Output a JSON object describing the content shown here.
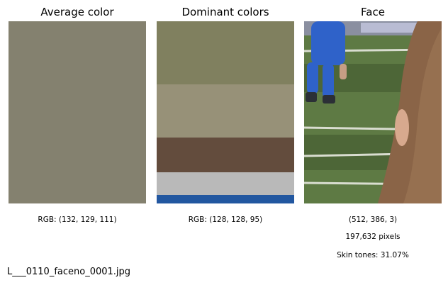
{
  "panels": {
    "average": {
      "title": "Average color",
      "swatch_color": "#84816F",
      "caption": "RGB: (132, 129, 111)"
    },
    "dominant": {
      "title": "Dominant colors",
      "stripes": [
        {
          "color": "#80805F",
          "share": 0.345
        },
        {
          "color": "#979178",
          "share": 0.29
        },
        {
          "color": "#634C3D",
          "share": 0.19
        },
        {
          "color": "#B9B9B9",
          "share": 0.125
        },
        {
          "color": "#2257A0",
          "share": 0.05
        }
      ],
      "caption": "RGB: (128, 128, 95)"
    },
    "face": {
      "title": "Face",
      "shape_text": "(512, 386, 3)",
      "pixel_count": "197,632 pixels",
      "skin_tones": "Skin tones: 31.07%",
      "colors": {
        "grass": "#5E7A44",
        "grass_dark": "#4D6637",
        "jersey": "#2F62C9",
        "hair": "#8A6447",
        "hair_light": "#A07A58",
        "skin": "#D7A98E",
        "field_line": "#D9DDD0"
      }
    }
  },
  "filename": "L___0110_faceno_0001.jpg"
}
